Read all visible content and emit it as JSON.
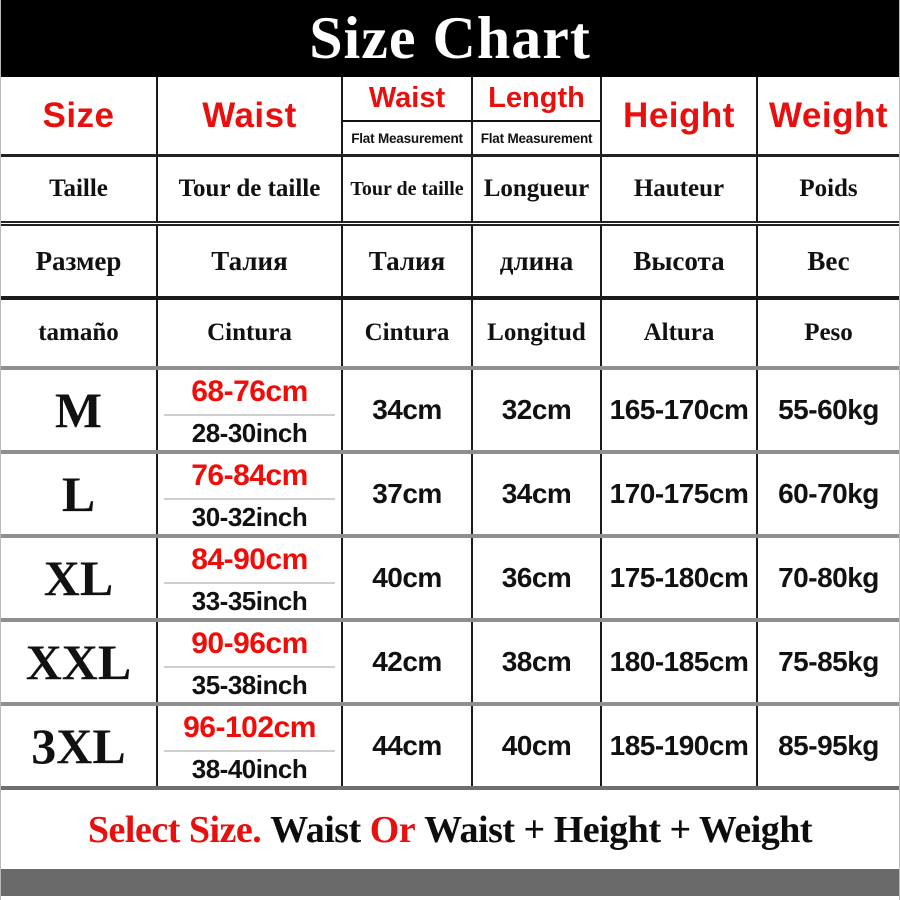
{
  "title": "Size Chart",
  "colors": {
    "title_bg": "#000000",
    "title_text": "#ffffff",
    "header_red": "#e8100e",
    "value_red": "#ef0d0a",
    "text_black": "#111111",
    "row_divider_gray": "#8f8f8f",
    "footer_bar_gray": "#696969"
  },
  "header": {
    "size": "Size",
    "waist": "Waist",
    "waist_flat": {
      "label": "Waist",
      "sub": "Flat Measurement"
    },
    "length_flat": {
      "label": "Length",
      "sub": "Flat Measurement"
    },
    "height": "Height",
    "weight": "Weight"
  },
  "translations": [
    {
      "lang": "french",
      "cells": [
        "Taille",
        "Tour de taille",
        "Tour de taille",
        "Longueur",
        "Hauteur",
        "Poids"
      ]
    },
    {
      "lang": "russian",
      "cells": [
        "Размер",
        "Талия",
        "Талия",
        "длина",
        "Высота",
        "Вес"
      ]
    },
    {
      "lang": "spanish",
      "cells": [
        "tamaño",
        "Cintura",
        "Cintura",
        "Longitud",
        "Altura",
        "Peso"
      ]
    }
  ],
  "rows": [
    {
      "size": "M",
      "waist_cm": "68-76cm",
      "waist_inch": "28-30inch",
      "waist_flat": "34cm",
      "length": "32cm",
      "height": "165-170cm",
      "weight": "55-60kg"
    },
    {
      "size": "L",
      "waist_cm": "76-84cm",
      "waist_inch": "30-32inch",
      "waist_flat": "37cm",
      "length": "34cm",
      "height": "170-175cm",
      "weight": "60-70kg"
    },
    {
      "size": "XL",
      "waist_cm": "84-90cm",
      "waist_inch": "33-35inch",
      "waist_flat": "40cm",
      "length": "36cm",
      "height": "175-180cm",
      "weight": "70-80kg"
    },
    {
      "size": "XXL",
      "waist_cm": "90-96cm",
      "waist_inch": "35-38inch",
      "waist_flat": "42cm",
      "length": "38cm",
      "height": "180-185cm",
      "weight": "75-85kg"
    },
    {
      "size": "3XL",
      "waist_cm": "96-102cm",
      "waist_inch": "38-40inch",
      "waist_flat": "44cm",
      "length": "40cm",
      "height": "185-190cm",
      "weight": "85-95kg"
    }
  ],
  "footer": {
    "select": "Select Size.",
    "segment_1": " Waist ",
    "or": "Or",
    "segment_2": " Waist + Height + Weight"
  },
  "chart_data": {
    "type": "table",
    "title": "Size Chart",
    "columns": [
      "Size",
      "Waist",
      "Waist (Flat Measurement)",
      "Length (Flat Measurement)",
      "Height",
      "Weight"
    ],
    "column_translations": {
      "french": [
        "Taille",
        "Tour de taille",
        "Tour de taille",
        "Longueur",
        "Hauteur",
        "Poids"
      ],
      "russian": [
        "Размер",
        "Талия",
        "Талия",
        "длина",
        "Высота",
        "Вес"
      ],
      "spanish": [
        "tamaño",
        "Cintura",
        "Cintura",
        "Longitud",
        "Altura",
        "Peso"
      ]
    },
    "rows": [
      [
        "M",
        "68-76cm / 28-30inch",
        "34cm",
        "32cm",
        "165-170cm",
        "55-60kg"
      ],
      [
        "L",
        "76-84cm / 30-32inch",
        "37cm",
        "34cm",
        "170-175cm",
        "60-70kg"
      ],
      [
        "XL",
        "84-90cm / 33-35inch",
        "40cm",
        "36cm",
        "175-180cm",
        "70-80kg"
      ],
      [
        "XXL",
        "90-96cm / 35-38inch",
        "42cm",
        "38cm",
        "180-185cm",
        "75-85kg"
      ],
      [
        "3XL",
        "96-102cm / 38-40inch",
        "44cm",
        "40cm",
        "185-190cm",
        "85-95kg"
      ]
    ],
    "footnote": "Select Size. Waist Or Waist + Height + Weight"
  }
}
